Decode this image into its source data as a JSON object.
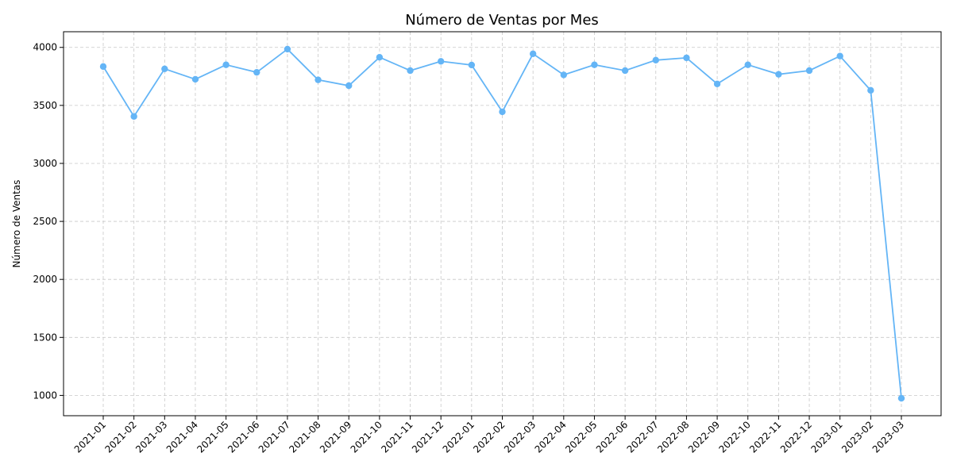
{
  "chart_data": {
    "type": "line",
    "title": "Número de Ventas por Mes",
    "xlabel": "",
    "ylabel": "Número de Ventas",
    "categories": [
      "2021-01",
      "2021-02",
      "2021-03",
      "2021-04",
      "2021-05",
      "2021-06",
      "2021-07",
      "2021-08",
      "2021-09",
      "2021-10",
      "2021-11",
      "2021-12",
      "2022-01",
      "2022-02",
      "2022-03",
      "2022-04",
      "2022-05",
      "2022-06",
      "2022-07",
      "2022-08",
      "2022-09",
      "2022-10",
      "2022-11",
      "2022-12",
      "2023-01",
      "2023-02",
      "2023-03"
    ],
    "series": [
      {
        "values": [
          3835,
          3405,
          3815,
          3725,
          3850,
          3785,
          3985,
          3720,
          3670,
          3915,
          3800,
          3880,
          3848,
          3445,
          3945,
          3763,
          3850,
          3800,
          3890,
          3910,
          3685,
          3850,
          3768,
          3800,
          3925,
          3630,
          975
        ],
        "color": "#64b5f6"
      }
    ],
    "ylim": [
      825,
      4135
    ],
    "yticks": [
      1000,
      1500,
      2000,
      2500,
      3000,
      3500,
      4000
    ],
    "ytick_labels": [
      "1000",
      "1500",
      "2000",
      "2500",
      "3000",
      "3500",
      "4000"
    ],
    "grid": true,
    "grid_color": "#c8c8c8",
    "legend": "none"
  }
}
